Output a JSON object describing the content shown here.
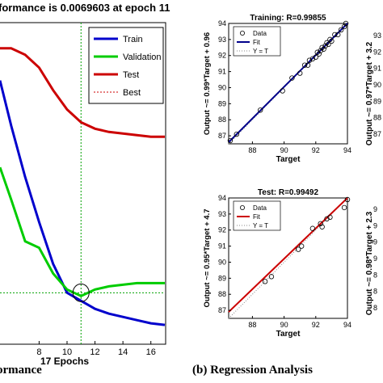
{
  "captions": {
    "left": "ormance",
    "right": "(b) Regression Analysis"
  },
  "chart_data": [
    {
      "type": "line",
      "title": "formance is 0.0069603 at epoch 11",
      "xlabel": "17 Epochs",
      "xlim": [
        5.2,
        17.0
      ],
      "ylim": [
        0,
        1
      ],
      "log_scale_y": true,
      "grid": false,
      "xticks": [
        8,
        10,
        12,
        14,
        16
      ],
      "legend": {
        "placement": "top-right",
        "entries": [
          "Train",
          "Validation",
          "Test",
          "Best"
        ]
      },
      "best": {
        "epoch": 11,
        "performance": 0.0069603
      },
      "series": [
        {
          "name": "Train",
          "color": "#0000cc",
          "x": [
            5.2,
            6,
            7,
            8,
            9,
            10,
            11,
            12,
            13,
            14,
            15,
            16,
            17
          ],
          "y": [
            0.82,
            0.68,
            0.52,
            0.38,
            0.25,
            0.16,
            0.135,
            0.11,
            0.095,
            0.085,
            0.075,
            0.065,
            0.06
          ]
        },
        {
          "name": "Validation",
          "color": "#00cc00",
          "x": [
            5.2,
            6,
            7,
            8,
            9,
            10,
            11,
            12,
            13,
            14,
            15,
            16,
            17
          ],
          "y": [
            0.55,
            0.45,
            0.32,
            0.3,
            0.22,
            0.17,
            0.15,
            0.17,
            0.18,
            0.185,
            0.19,
            0.19,
            0.19
          ]
        },
        {
          "name": "Test",
          "color": "#cc0000",
          "x": [
            5.2,
            6,
            7,
            8,
            9,
            10,
            11,
            12,
            13,
            14,
            15,
            16,
            17
          ],
          "y": [
            0.92,
            0.92,
            0.9,
            0.86,
            0.79,
            0.73,
            0.69,
            0.67,
            0.66,
            0.655,
            0.65,
            0.645,
            0.645
          ]
        },
        {
          "name": "Best",
          "color": "#00a000",
          "type": "dotted-reference",
          "x_line": 11,
          "y_line": 0.16
        }
      ]
    },
    {
      "type": "scatter",
      "title": "Training: R=0.99855",
      "xlabel": "Target",
      "ylabel": "Output ~= 0.99*Target + 0.96",
      "xlim": [
        86.5,
        94
      ],
      "ylim": [
        86.5,
        94
      ],
      "xticks": [
        88,
        90,
        92,
        94
      ],
      "yticks": [
        87,
        88,
        89,
        90,
        91,
        92,
        93,
        94
      ],
      "fit_color": "#00008b",
      "legend": {
        "placement": "top-left",
        "entries": [
          "Data",
          "Fit",
          "Y = T"
        ]
      },
      "fit": [
        [
          86.5,
          86.6
        ],
        [
          94,
          94.0
        ]
      ],
      "points": [
        [
          86.6,
          86.7
        ],
        [
          87.0,
          87.1
        ],
        [
          88.5,
          88.6
        ],
        [
          89.9,
          89.8
        ],
        [
          90.5,
          90.6
        ],
        [
          91.0,
          90.9
        ],
        [
          91.3,
          91.4
        ],
        [
          91.5,
          91.4
        ],
        [
          91.6,
          91.7
        ],
        [
          91.8,
          91.8
        ],
        [
          92.0,
          91.9
        ],
        [
          92.1,
          92.2
        ],
        [
          92.2,
          92.1
        ],
        [
          92.3,
          92.3
        ],
        [
          92.4,
          92.5
        ],
        [
          92.5,
          92.4
        ],
        [
          92.6,
          92.6
        ],
        [
          92.7,
          92.8
        ],
        [
          92.8,
          92.7
        ],
        [
          92.9,
          93.0
        ],
        [
          93.0,
          92.9
        ],
        [
          93.2,
          93.3
        ],
        [
          93.4,
          93.3
        ],
        [
          93.6,
          93.6
        ],
        [
          93.8,
          93.8
        ],
        [
          93.9,
          94.0
        ]
      ]
    },
    {
      "type": "scatter",
      "title": "Test: R=0.99492",
      "xlabel": "Target",
      "ylabel": "Output ~= 0.95*Target + 4.7",
      "xlim": [
        86.5,
        94
      ],
      "ylim": [
        86.5,
        94
      ],
      "xticks": [
        88,
        90,
        92,
        94
      ],
      "yticks": [
        87,
        88,
        89,
        90,
        91,
        92,
        93,
        94
      ],
      "fit_color": "#cc0000",
      "legend": {
        "placement": "top-left",
        "entries": [
          "Data",
          "Fit",
          "Y = T"
        ]
      },
      "fit": [
        [
          86.5,
          86.9
        ],
        [
          94,
          94.0
        ]
      ],
      "points": [
        [
          88.8,
          88.8
        ],
        [
          89.2,
          89.1
        ],
        [
          90.9,
          90.8
        ],
        [
          91.1,
          91.0
        ],
        [
          91.8,
          92.1
        ],
        [
          92.3,
          92.4
        ],
        [
          92.4,
          92.2
        ],
        [
          92.7,
          92.7
        ],
        [
          92.9,
          92.8
        ],
        [
          93.8,
          93.4
        ],
        [
          94.0,
          93.9
        ]
      ]
    },
    {
      "type": "scatter",
      "title": "",
      "ylabel": "Output ~= 0.97*Target + 3.2",
      "ytick_fragments": [
        "93",
        "92",
        "91",
        "90",
        "89",
        "88",
        "87"
      ],
      "partial": "right-edge"
    },
    {
      "type": "scatter",
      "title": "",
      "ylabel": "Output ~= 0.98*Target + 2.3",
      "ytick_fragments": [
        "9",
        "9",
        "9",
        "9",
        "8",
        "8",
        "8"
      ],
      "partial": "right-edge"
    }
  ]
}
